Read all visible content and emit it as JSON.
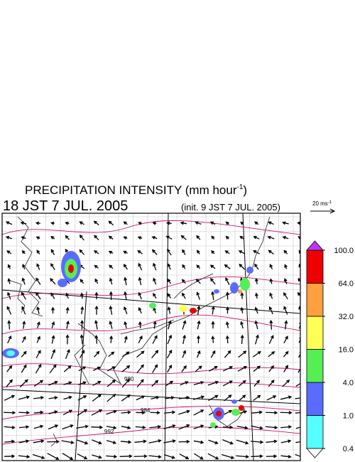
{
  "title": {
    "text": "PRECIPITATION INTENSITY (mm hour",
    "exponent": "-1",
    "close": ")"
  },
  "valid_time": "18 JST 7 JUL. 2005",
  "init_time": "(init. 9 JST 7 JUL. 2005)",
  "vector_scale": {
    "text": "20 ms",
    "exponent": "-1"
  },
  "isobar_labels": [
    "980",
    "984",
    "992"
  ],
  "colorbar": {
    "levels": [
      {
        "value": 0.4,
        "label": "0.4"
      },
      {
        "value": 1,
        "label": "1.0"
      },
      {
        "value": 4,
        "label": "4.0"
      },
      {
        "value": 16,
        "label": "16.0"
      },
      {
        "value": 32,
        "label": "32.0"
      },
      {
        "value": 64,
        "label": "64.0"
      },
      {
        "value": 100,
        "label": "100.0"
      }
    ],
    "colors": [
      "#55ffff",
      "#5a6cff",
      "#55ee55",
      "#ffff55",
      "#ffa040",
      "#ee0000"
    ],
    "under_color": "#ffffff",
    "over_color": "#bb33ff"
  }
}
